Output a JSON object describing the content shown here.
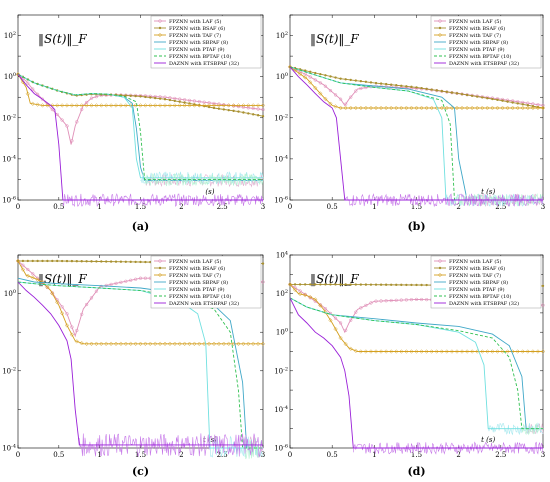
{
  "chart_data": [
    {
      "type": "line",
      "caption": "(a)",
      "ylabel": "‖S(t)‖_F",
      "xlabel_text": "(s)",
      "xlim": [
        0,
        3
      ],
      "yexp": [
        -6,
        3
      ],
      "log_y": true,
      "xticks": [
        "0",
        "0.5",
        "1",
        "1.5",
        "2",
        "2.5",
        "3"
      ],
      "legend": [
        "FPZNN with LAF (5)",
        "FPZNN with BSAF (6)",
        "FPZNN with TAF (7)",
        "FPZNN with SBPAF (8)",
        "FPZNN with PTAF (9)",
        "FPZNN with BPTAF (10)",
        "DAZNN with ETSBPAF (32)"
      ],
      "series": [
        {
          "name": "FPZNN with LAF (5)",
          "x": [
            0,
            0.1,
            0.2,
            0.3,
            0.4,
            0.5,
            0.6,
            0.65,
            0.7,
            0.8,
            0.9,
            1.0,
            1.2,
            1.5,
            1.8,
            2.1,
            2.4,
            2.7,
            3.0
          ],
          "y": [
            1.3,
            0.6,
            0.2,
            0.08,
            0.03,
            0.012,
            0.004,
            0.0005,
            0.004,
            0.04,
            0.09,
            0.12,
            0.13,
            0.12,
            0.1,
            0.07,
            0.05,
            0.035,
            0.025
          ]
        },
        {
          "name": "FPZNN with BSAF (6)",
          "x": [
            0,
            0.2,
            0.5,
            0.7,
            0.9,
            1.2,
            1.5,
            1.8,
            2.1,
            2.4,
            2.7,
            3.0
          ],
          "y": [
            1.3,
            0.5,
            0.2,
            0.12,
            0.14,
            0.13,
            0.11,
            0.08,
            0.05,
            0.03,
            0.02,
            0.012
          ]
        },
        {
          "name": "FPZNN with TAF (7)",
          "x": [
            0,
            0.1,
            0.15,
            0.3,
            0.5,
            0.8,
            1.0,
            1.5,
            2.0,
            2.5,
            3.0
          ],
          "y": [
            1.3,
            0.3,
            0.05,
            0.04,
            0.04,
            0.04,
            0.04,
            0.04,
            0.04,
            0.04,
            0.04
          ]
        },
        {
          "name": "FPZNN with SBPAF (8)",
          "x": [
            0,
            0.2,
            0.5,
            0.7,
            0.9,
            1.1,
            1.3,
            1.4,
            1.45,
            1.5,
            1.55,
            1.6,
            2.0,
            2.5,
            3.0
          ],
          "y": [
            1.3,
            0.5,
            0.2,
            0.13,
            0.15,
            0.14,
            0.1,
            0.05,
            0.003,
            4e-05,
            9e-06,
            9e-06,
            9e-06,
            9e-06,
            9e-06
          ]
        },
        {
          "name": "FPZNN with PTAF (9)",
          "x": [
            0,
            0.2,
            0.5,
            0.7,
            0.9,
            1.1,
            1.3,
            1.4,
            1.45,
            1.5,
            2.0,
            2.5,
            3.0
          ],
          "y": [
            1.3,
            0.5,
            0.2,
            0.13,
            0.15,
            0.14,
            0.1,
            0.03,
            0.0001,
            1.2e-05,
            1.2e-05,
            1.2e-05,
            1.2e-05
          ]
        },
        {
          "name": "FPZNN with BPTAF (10)",
          "x": [
            0,
            0.2,
            0.5,
            0.7,
            0.9,
            1.1,
            1.3,
            1.45,
            1.5,
            1.55,
            2.0,
            2.5,
            3.0
          ],
          "y": [
            1.3,
            0.5,
            0.2,
            0.13,
            0.15,
            0.14,
            0.11,
            0.06,
            0.002,
            1e-05,
            1e-05,
            1e-05,
            1e-05
          ]
        },
        {
          "name": "DAZNN with ETSBPAF (32)",
          "x": [
            0,
            0.1,
            0.2,
            0.3,
            0.4,
            0.45,
            0.5,
            0.55,
            1.0,
            1.5,
            2.0,
            2.5,
            3.0
          ],
          "y": [
            1.3,
            0.4,
            0.15,
            0.08,
            0.04,
            0.025,
            0.0005,
            1e-06,
            1e-06,
            1e-06,
            1e-06,
            1e-06,
            1e-06
          ]
        }
      ]
    },
    {
      "type": "line",
      "caption": "(b)",
      "ylabel": "‖S(t)‖_F",
      "xlabel_text": "t (s)",
      "xlim": [
        0,
        3
      ],
      "yexp": [
        -6,
        3
      ],
      "log_y": true,
      "xticks": [
        "0",
        "0.5",
        "1",
        "1.5",
        "2",
        "2.5",
        "3"
      ],
      "legend": [
        "FPZNN with LAF (5)",
        "FPZNN with BSAF (6)",
        "FPZNN with TAF (7)",
        "FPZNN with SBPAF (8)",
        "FPZNN with PTAF (9)",
        "FPZNN with BPTAF (10)",
        "DAZNN with ETSBPAF (32)"
      ],
      "series": [
        {
          "name": "FPZNN with LAF (5)",
          "x": [
            0,
            0.2,
            0.4,
            0.6,
            0.65,
            0.7,
            0.8,
            1.0,
            1.3,
            1.6,
            2.0,
            2.5,
            3.0
          ],
          "y": [
            3,
            1.2,
            0.4,
            0.08,
            0.04,
            0.08,
            0.25,
            0.35,
            0.3,
            0.25,
            0.15,
            0.08,
            0.04
          ]
        },
        {
          "name": "FPZNN with BSAF (6)",
          "x": [
            0,
            0.3,
            0.6,
            1.0,
            1.5,
            2.0,
            2.5,
            3.0
          ],
          "y": [
            3,
            1.5,
            0.8,
            0.5,
            0.3,
            0.15,
            0.07,
            0.03
          ]
        },
        {
          "name": "FPZNN with TAF (7)",
          "x": [
            0,
            0.2,
            0.4,
            0.5,
            0.6,
            0.8,
            1.0,
            1.5,
            2.0,
            2.5,
            3.0
          ],
          "y": [
            3,
            0.8,
            0.1,
            0.04,
            0.03,
            0.03,
            0.03,
            0.03,
            0.03,
            0.03,
            0.03
          ]
        },
        {
          "name": "FPZNN with SBPAF (8)",
          "x": [
            0,
            0.3,
            0.6,
            1.0,
            1.4,
            1.8,
            1.95,
            2.0,
            2.1,
            2.5,
            3.0
          ],
          "y": [
            3,
            1.2,
            0.5,
            0.35,
            0.25,
            0.1,
            0.03,
            0.0001,
            1e-06,
            1e-06,
            1e-06
          ]
        },
        {
          "name": "FPZNN with PTAF (9)",
          "x": [
            0,
            0.3,
            0.6,
            1.0,
            1.4,
            1.7,
            1.8,
            1.85,
            2.0,
            2.5,
            3.0
          ],
          "y": [
            3,
            1.2,
            0.5,
            0.3,
            0.2,
            0.08,
            0.01,
            1e-06,
            1e-06,
            1e-06,
            1e-06
          ]
        },
        {
          "name": "FPZNN with BPTAF (10)",
          "x": [
            0,
            0.3,
            0.6,
            1.0,
            1.4,
            1.8,
            1.9,
            1.95,
            2.1,
            2.5,
            3.0
          ],
          "y": [
            3,
            1.2,
            0.5,
            0.3,
            0.2,
            0.07,
            0.005,
            1e-06,
            1e-06,
            1e-06,
            1e-06
          ]
        },
        {
          "name": "DAZNN with ETSBPAF (32)",
          "x": [
            0,
            0.1,
            0.2,
            0.3,
            0.4,
            0.5,
            0.55,
            0.6,
            0.65,
            1.0,
            1.5,
            2.0,
            2.5,
            3.0
          ],
          "y": [
            3,
            1,
            0.4,
            0.15,
            0.06,
            0.03,
            0.01,
            0.0001,
            1e-06,
            1e-06,
            1e-06,
            1e-06,
            1e-06,
            1e-06
          ]
        }
      ]
    },
    {
      "type": "line",
      "caption": "(c)",
      "ylabel": "‖S(t)‖_F",
      "xlabel_text": "t (s)",
      "xlim": [
        0,
        3
      ],
      "yexp": [
        -4,
        1
      ],
      "log_y": true,
      "xticks": [
        "0",
        "0.5",
        "1",
        "1.5",
        "2",
        "2.5",
        "3"
      ],
      "legend": [
        "FPZNN with LAF (5)",
        "FPZNN with BSAF (6)",
        "FPZNN with TAF (7)",
        "FPZNN with SBPAF (8)",
        "FPZNN with PTAF (9)",
        "FPZNN with BPTAF (10)",
        "DAZNN with ETSBPAF (32)"
      ],
      "series": [
        {
          "name": "FPZNN with LAF (5)",
          "x": [
            0,
            0.2,
            0.4,
            0.6,
            0.7,
            0.8,
            1.0,
            1.5,
            2.0,
            2.5,
            3.0
          ],
          "y": [
            7,
            3,
            1.2,
            0.3,
            0.08,
            0.4,
            1.5,
            2.5,
            2.5,
            2.2,
            2
          ]
        },
        {
          "name": "FPZNN with BSAF (6)",
          "x": [
            0,
            0.5,
            1.0,
            1.5,
            2.0,
            2.5,
            3.0
          ],
          "y": [
            7,
            7,
            6.8,
            6.6,
            6.4,
            6.2,
            6
          ]
        },
        {
          "name": "FPZNN with TAF (7)",
          "x": [
            0,
            0.1,
            0.2,
            0.3,
            0.4,
            0.5,
            0.6,
            0.7,
            0.8,
            1.0,
            1.5,
            2.0,
            2.5,
            3.0
          ],
          "y": [
            7,
            3,
            2.5,
            2,
            1.2,
            0.5,
            0.15,
            0.06,
            0.05,
            0.05,
            0.05,
            0.05,
            0.05,
            0.05
          ]
        },
        {
          "name": "FPZNN with SBPAF (8)",
          "x": [
            0,
            0.2,
            0.5,
            1.0,
            1.5,
            2.0,
            2.4,
            2.6,
            2.75,
            2.8,
            3.0
          ],
          "y": [
            2.5,
            2,
            1.8,
            1.6,
            1.4,
            1,
            0.5,
            0.2,
            0.005,
            0.0001,
            0.0001
          ]
        },
        {
          "name": "FPZNN with PTAF (9)",
          "x": [
            0,
            0.2,
            0.5,
            1.0,
            1.5,
            2.0,
            2.2,
            2.3,
            2.35,
            2.4,
            3.0
          ],
          "y": [
            2,
            1.8,
            1.6,
            1.4,
            1.2,
            0.6,
            0.3,
            0.05,
            0.0001,
            0.0001,
            0.0001
          ]
        },
        {
          "name": "FPZNN with BPTAF (10)",
          "x": [
            0,
            0.2,
            0.5,
            1.0,
            1.5,
            2.0,
            2.4,
            2.6,
            2.7,
            2.75,
            3.0
          ],
          "y": [
            2,
            1.8,
            1.6,
            1.4,
            1.2,
            0.8,
            0.4,
            0.1,
            0.003,
            0.0001,
            0.0001
          ]
        },
        {
          "name": "DAZNN with ETSBPAF (32)",
          "x": [
            0,
            0.1,
            0.2,
            0.3,
            0.4,
            0.5,
            0.6,
            0.65,
            0.7,
            0.75,
            1.0,
            1.5,
            2.0,
            2.5,
            3.0
          ],
          "y": [
            2,
            1.2,
            0.8,
            0.5,
            0.3,
            0.15,
            0.06,
            0.02,
            0.001,
            0.00012,
            0.00012,
            0.00012,
            0.00012,
            0.00012,
            0.00012
          ]
        }
      ]
    },
    {
      "type": "line",
      "caption": "(d)",
      "ylabel": "‖S(t)‖_F",
      "xlabel_text": "t (s)",
      "xlim": [
        0,
        3
      ],
      "yexp": [
        -6,
        4
      ],
      "log_y": true,
      "xticks": [
        "0",
        "0.5",
        "1",
        "1.5",
        "2",
        "2.5",
        "3"
      ],
      "legend": [
        "FPZNN with LAF (5)",
        "FPZNN with BSAF (6)",
        "FPZNN with TAF (7)",
        "FPZNN with SBPAF (8)",
        "FPZNN with PTAF (9)",
        "FPZNN with BPTAF (10)",
        "DAZNN with ETSBPAF (32)"
      ],
      "series": [
        {
          "name": "FPZNN with LAF (5)",
          "x": [
            0,
            0.2,
            0.4,
            0.6,
            0.65,
            0.7,
            0.8,
            1.0,
            1.5,
            2.0,
            2.5,
            3.0
          ],
          "y": [
            300,
            80,
            20,
            3,
            1,
            3,
            15,
            40,
            50,
            45,
            35,
            25
          ]
        },
        {
          "name": "FPZNN with BSAF (6)",
          "x": [
            0,
            0.5,
            1.0,
            1.5,
            2.0,
            2.5,
            3.0
          ],
          "y": [
            300,
            300,
            290,
            280,
            270,
            260,
            250
          ]
        },
        {
          "name": "FPZNN with TAF (7)",
          "x": [
            0,
            0.1,
            0.2,
            0.3,
            0.4,
            0.5,
            0.6,
            0.7,
            0.8,
            1.0,
            1.5,
            2.0,
            2.5,
            3.0
          ],
          "y": [
            300,
            100,
            80,
            50,
            15,
            3,
            0.5,
            0.15,
            0.1,
            0.1,
            0.1,
            0.1,
            0.1,
            0.1
          ]
        },
        {
          "name": "FPZNN with SBPAF (8)",
          "x": [
            0,
            0.2,
            0.5,
            1.0,
            1.5,
            2.0,
            2.4,
            2.6,
            2.75,
            2.8,
            3.0
          ],
          "y": [
            60,
            20,
            8,
            5,
            3,
            2,
            0.8,
            0.2,
            0.005,
            1e-05,
            1e-05
          ]
        },
        {
          "name": "FPZNN with PTAF (9)",
          "x": [
            0,
            0.2,
            0.5,
            1.0,
            1.5,
            2.0,
            2.2,
            2.3,
            2.35,
            2.4,
            3.0
          ],
          "y": [
            60,
            20,
            8,
            4,
            2.5,
            1,
            0.3,
            0.02,
            1e-05,
            1e-05,
            1e-05
          ]
        },
        {
          "name": "FPZNN with BPTAF (10)",
          "x": [
            0,
            0.2,
            0.5,
            1.0,
            1.5,
            2.0,
            2.4,
            2.6,
            2.7,
            2.75,
            3.0
          ],
          "y": [
            60,
            20,
            8,
            4,
            2.5,
            1.2,
            0.5,
            0.05,
            0.001,
            1e-05,
            1e-05
          ]
        },
        {
          "name": "DAZNN with ETSBPAF (32)",
          "x": [
            0,
            0.1,
            0.2,
            0.3,
            0.4,
            0.5,
            0.6,
            0.65,
            0.7,
            0.75,
            1.0,
            1.5,
            2.0,
            2.5,
            3.0
          ],
          "y": [
            60,
            8,
            3,
            1,
            0.5,
            0.2,
            0.05,
            0.01,
            0.0005,
            1e-06,
            1e-06,
            1e-06,
            1e-06,
            1e-06,
            1e-06
          ]
        }
      ]
    }
  ],
  "style": {
    "colors": [
      "#e090b8",
      "#a89030",
      "#d4a020",
      "#40a8c8",
      "#70e0e0",
      "#30c050",
      "#9a20d8"
    ],
    "noise_colors": [
      "#e0b0d0",
      "#a6e8ee",
      "#b0f0d0",
      "#c678e8"
    ],
    "markers": [
      "circle",
      "dot",
      "diamond",
      "none",
      "none",
      "none",
      "none"
    ],
    "dashes": [
      "",
      "",
      "",
      "",
      "",
      "3,2",
      ""
    ]
  }
}
